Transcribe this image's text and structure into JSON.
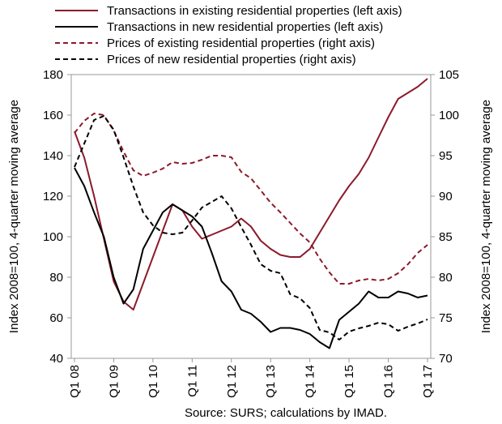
{
  "chart_data": {
    "type": "line",
    "title": "",
    "xlabel": "",
    "ylabel_left": "Index 2008=100, 4-quarter moving average",
    "ylabel_right": "Index 2008=100, 4-quarter moving average",
    "ylim_left": [
      40,
      180
    ],
    "ylim_right": [
      70,
      105
    ],
    "yticks_left": [
      "40",
      "60",
      "80",
      "100",
      "120",
      "140",
      "160",
      "180"
    ],
    "yticks_right": [
      "70",
      "75",
      "80",
      "85",
      "90",
      "95",
      "100",
      "105"
    ],
    "x_tick_labels": [
      "Q1 08",
      "Q1 09",
      "Q1 10",
      "Q1 11",
      "Q1 12",
      "Q1 13",
      "Q1 14",
      "Q1 15",
      "Q1 16",
      "Q1 17"
    ],
    "source": "Source: SURS; calculations by IMAD.",
    "legend_position": "top",
    "grid": false,
    "series": [
      {
        "name": "Transactions in existing residential properties (left axis)",
        "axis": "left",
        "color": "#8B1A2B",
        "dash": "solid",
        "values": [
          152,
          139,
          120,
          99,
          78,
          68,
          64,
          77,
          90,
          103,
          116,
          113,
          105,
          99,
          101,
          103,
          105,
          109,
          105,
          98,
          94,
          91,
          90,
          90,
          94,
          102,
          110,
          118,
          125,
          131,
          139,
          149,
          159,
          168,
          171,
          174,
          178
        ]
      },
      {
        "name": "Transactions in new residential properties (left axis)",
        "axis": "left",
        "color": "#000000",
        "dash": "solid",
        "values": [
          134,
          125,
          112,
          100,
          80,
          67,
          74,
          94,
          103,
          112,
          116,
          113,
          110,
          105,
          92,
          78,
          73,
          64,
          62,
          58,
          53,
          55,
          55,
          54,
          52,
          48,
          45,
          59,
          63,
          67,
          73,
          70,
          70,
          73,
          72,
          70,
          71
        ]
      },
      {
        "name": "Prices of existing residential properties (right axis)",
        "axis": "right",
        "color": "#8B1A2B",
        "dash": "dashed",
        "values": [
          97.8,
          99.3,
          100.2,
          100.0,
          98.1,
          95.5,
          93.2,
          92.5,
          92.9,
          93.4,
          94.2,
          94.0,
          94.1,
          94.5,
          95.0,
          95.0,
          94.8,
          93.0,
          92.2,
          90.7,
          89.2,
          88.0,
          86.7,
          85.4,
          84.3,
          82.3,
          80.6,
          79.2,
          79.2,
          79.6,
          79.8,
          79.6,
          79.8,
          80.5,
          81.6,
          83.0,
          84.0
        ]
      },
      {
        "name": "Prices of new residential properties (right axis)",
        "axis": "right",
        "color": "#000000",
        "dash": "dashed",
        "values": [
          93.6,
          96.5,
          99.4,
          99.9,
          98.2,
          94.8,
          91.2,
          88.0,
          86.4,
          85.5,
          85.3,
          85.5,
          87.0,
          88.6,
          89.3,
          90.0,
          88.5,
          86.2,
          84.0,
          81.6,
          80.8,
          80.5,
          77.9,
          77.4,
          76.2,
          73.5,
          73.2,
          72.3,
          73.3,
          73.7,
          74.0,
          74.4,
          74.2,
          73.4,
          73.9,
          74.3,
          74.8
        ]
      }
    ]
  }
}
